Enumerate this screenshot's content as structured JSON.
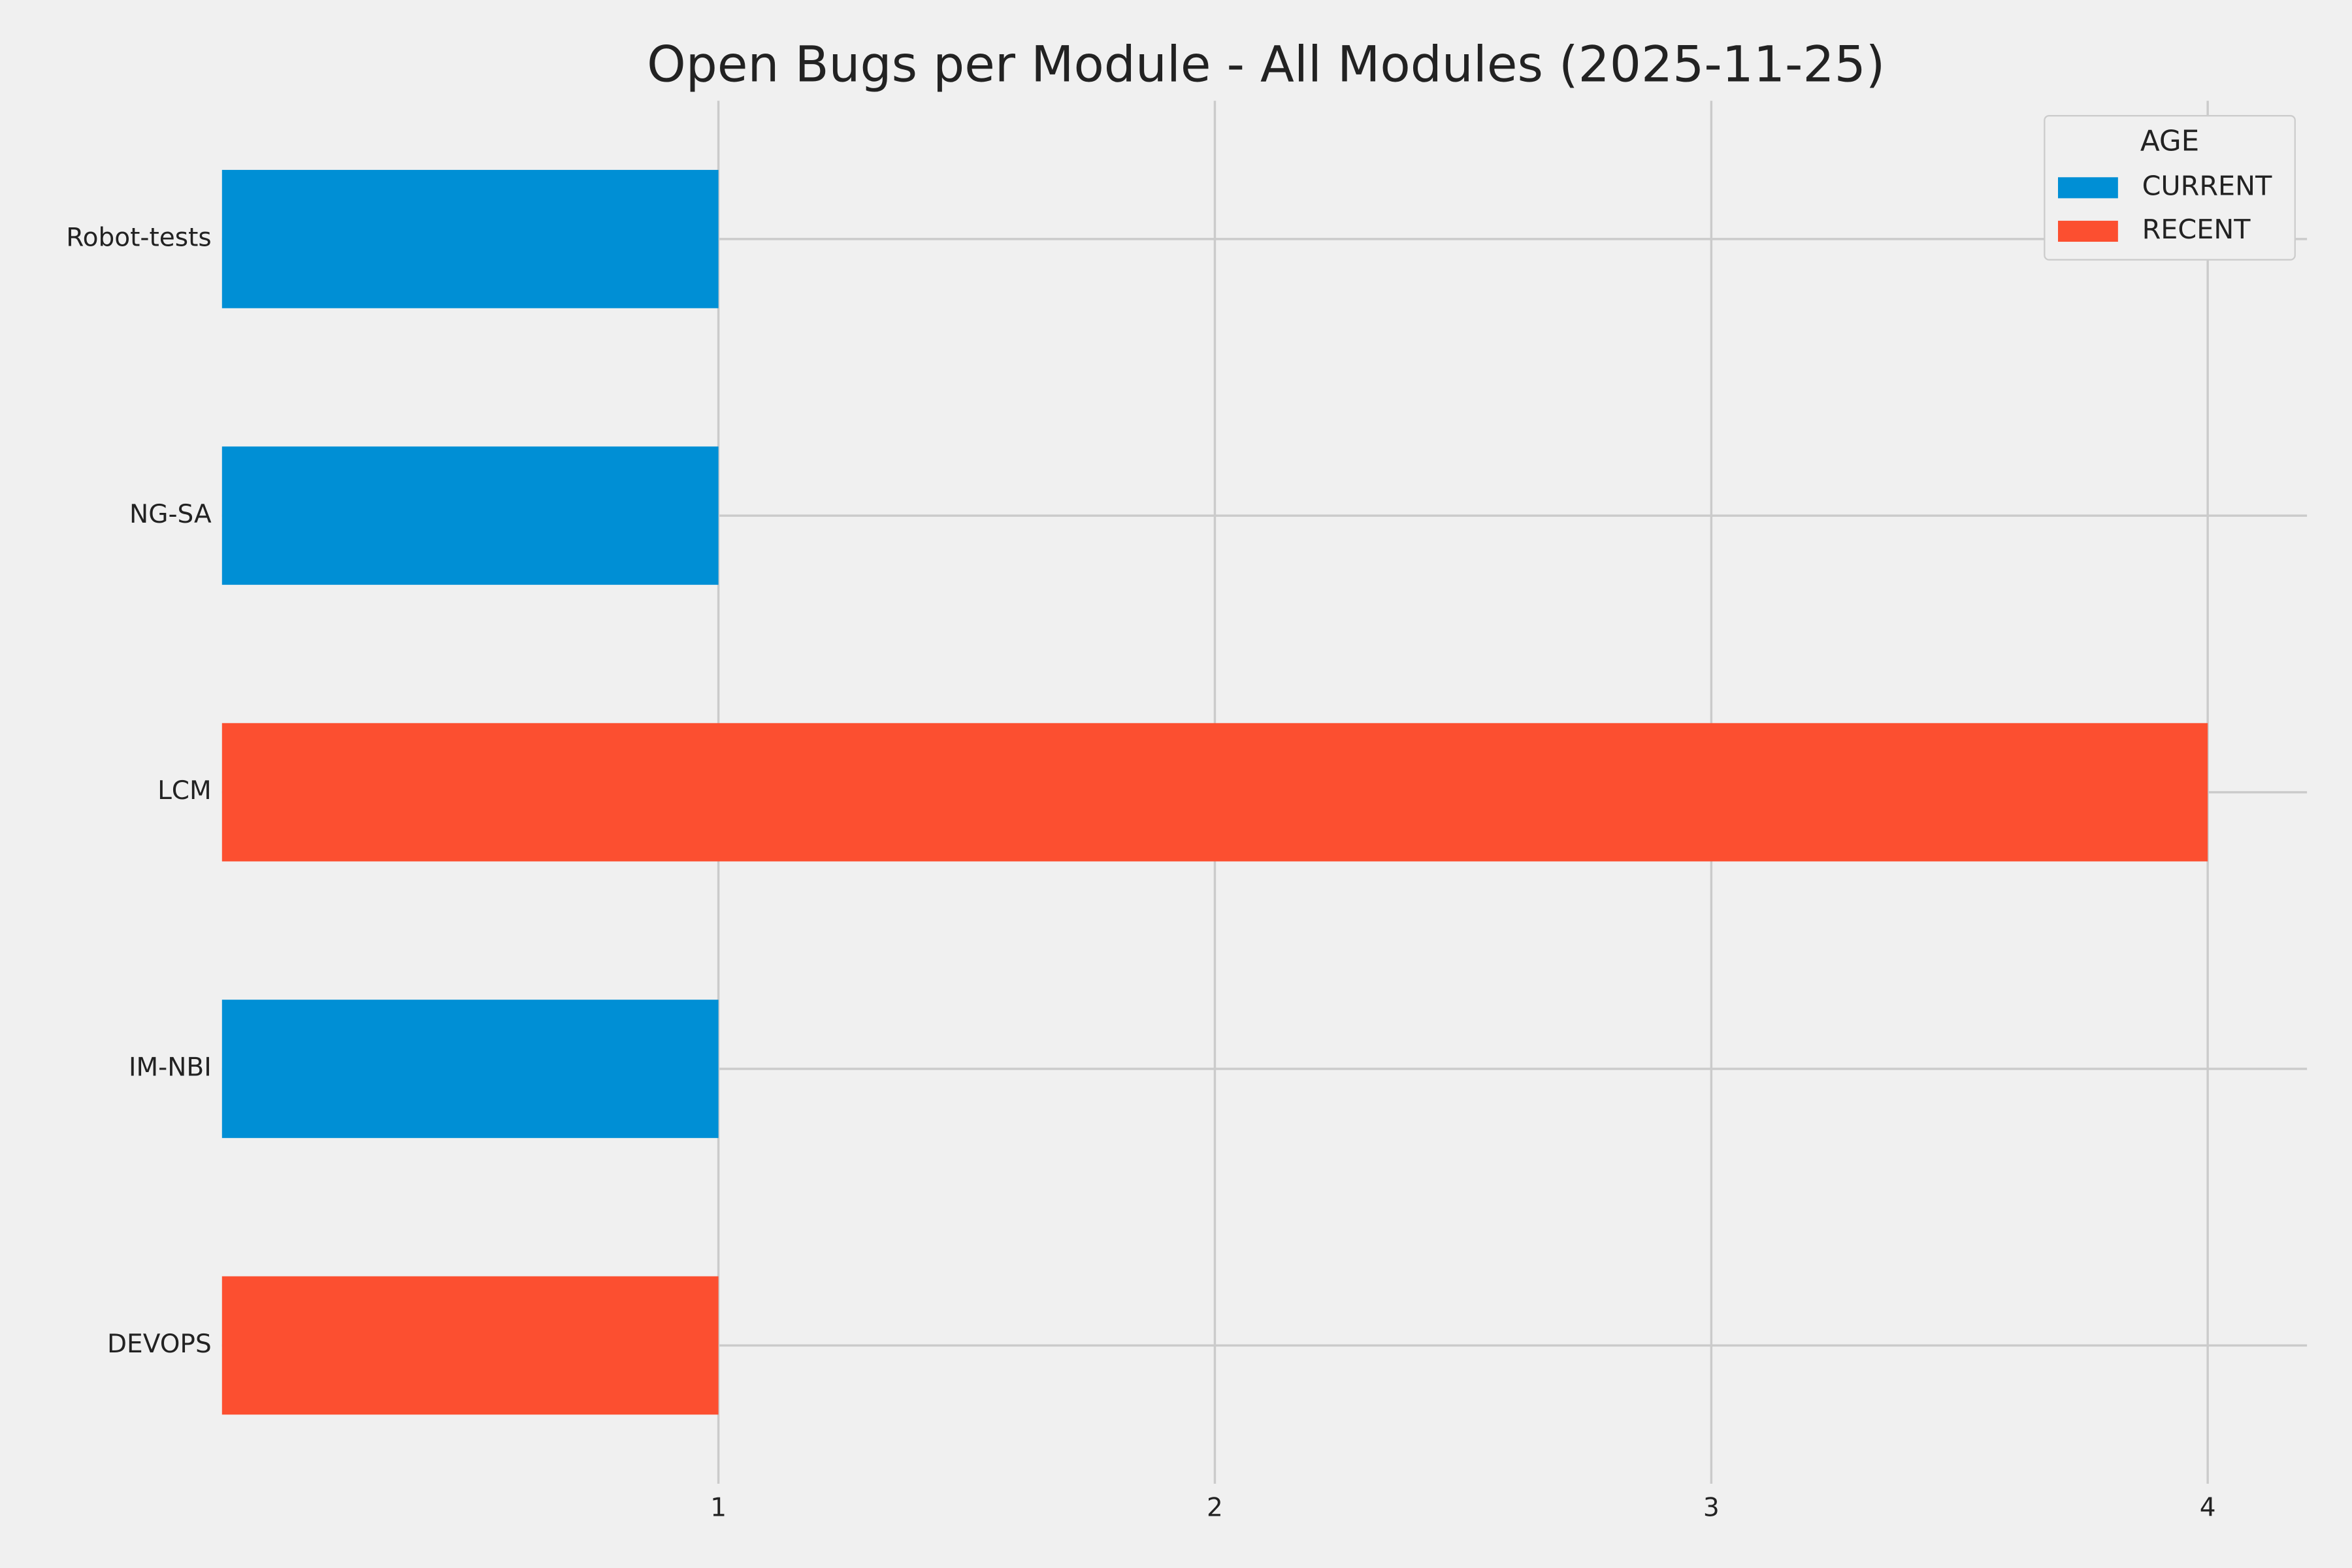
{
  "chart_data": {
    "type": "barh_stacked",
    "title": "Open Bugs per Module - All Modules (2025-11-25)",
    "categories": [
      "DEVOPS",
      "IM-NBI",
      "LCM",
      "NG-SA",
      "Robot-tests"
    ],
    "series": [
      {
        "name": "CURRENT",
        "color": "#008fd5",
        "values": [
          0,
          1,
          0,
          1,
          1
        ]
      },
      {
        "name": "RECENT",
        "color": "#fc4f30",
        "values": [
          1,
          0,
          4,
          0,
          0
        ]
      }
    ],
    "xlim": [
      0,
      4.2
    ],
    "xticks": [
      1,
      2,
      3,
      4
    ],
    "grid": true,
    "legend_title": "AGE",
    "legend": "upper right"
  }
}
